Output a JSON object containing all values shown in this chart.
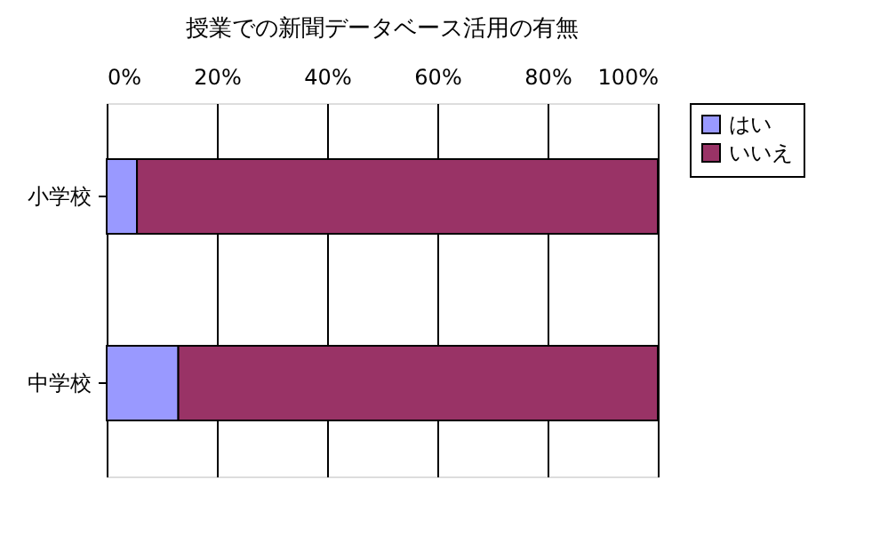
{
  "chart_data": {
    "type": "bar",
    "orientation": "horizontal",
    "stacked": true,
    "title": "授業での新聞データベース活用の有無",
    "categories": [
      "小学校",
      "中学校"
    ],
    "series": [
      {
        "name": "はい",
        "color": "#9999ff",
        "values": [
          5.5,
          13
        ]
      },
      {
        "name": "いいえ",
        "color": "#993366",
        "values": [
          94.5,
          87
        ]
      }
    ],
    "xlim": [
      0,
      100
    ],
    "xticks": [
      {
        "value": 0,
        "label": "0%"
      },
      {
        "value": 20,
        "label": "20%"
      },
      {
        "value": 40,
        "label": "40%"
      },
      {
        "value": 60,
        "label": "60%"
      },
      {
        "value": 80,
        "label": "80%"
      },
      {
        "value": 100,
        "label": "100%"
      }
    ],
    "grid": "x",
    "legend": "right"
  }
}
